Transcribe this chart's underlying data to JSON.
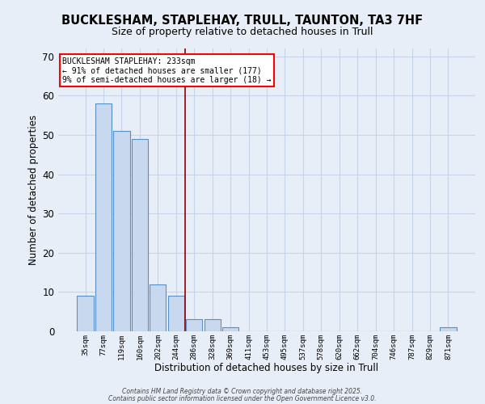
{
  "title_line1": "BUCKLESHAM, STAPLEHAY, TRULL, TAUNTON, TA3 7HF",
  "title_line2": "Size of property relative to detached houses in Trull",
  "xlabel": "Distribution of detached houses by size in Trull",
  "ylabel": "Number of detached properties",
  "bar_labels": [
    "35sqm",
    "77sqm",
    "119sqm",
    "160sqm",
    "202sqm",
    "244sqm",
    "286sqm",
    "328sqm",
    "369sqm",
    "411sqm",
    "453sqm",
    "495sqm",
    "537sqm",
    "578sqm",
    "620sqm",
    "662sqm",
    "704sqm",
    "746sqm",
    "787sqm",
    "829sqm",
    "871sqm"
  ],
  "bar_values": [
    9,
    58,
    51,
    49,
    12,
    9,
    3,
    3,
    1,
    0,
    0,
    0,
    0,
    0,
    0,
    0,
    0,
    0,
    0,
    0,
    1
  ],
  "bar_color": "#c8d8ee",
  "bar_edge_color": "#5590c8",
  "bar_width": 0.9,
  "red_line_x": 5.5,
  "annotation_text": "BUCKLESHAM STAPLEHAY: 233sqm\n← 91% of detached houses are smaller (177)\n9% of semi-detached houses are larger (18) →",
  "annotation_box_color": "white",
  "annotation_box_edge": "red",
  "ylim": [
    0,
    72
  ],
  "yticks": [
    0,
    10,
    20,
    30,
    40,
    50,
    60,
    70
  ],
  "grid_color": "#c8d4e8",
  "background_color": "#e8eef8",
  "footer_line1": "Contains HM Land Registry data © Crown copyright and database right 2025.",
  "footer_line2": "Contains public sector information licensed under the Open Government Licence v3.0."
}
